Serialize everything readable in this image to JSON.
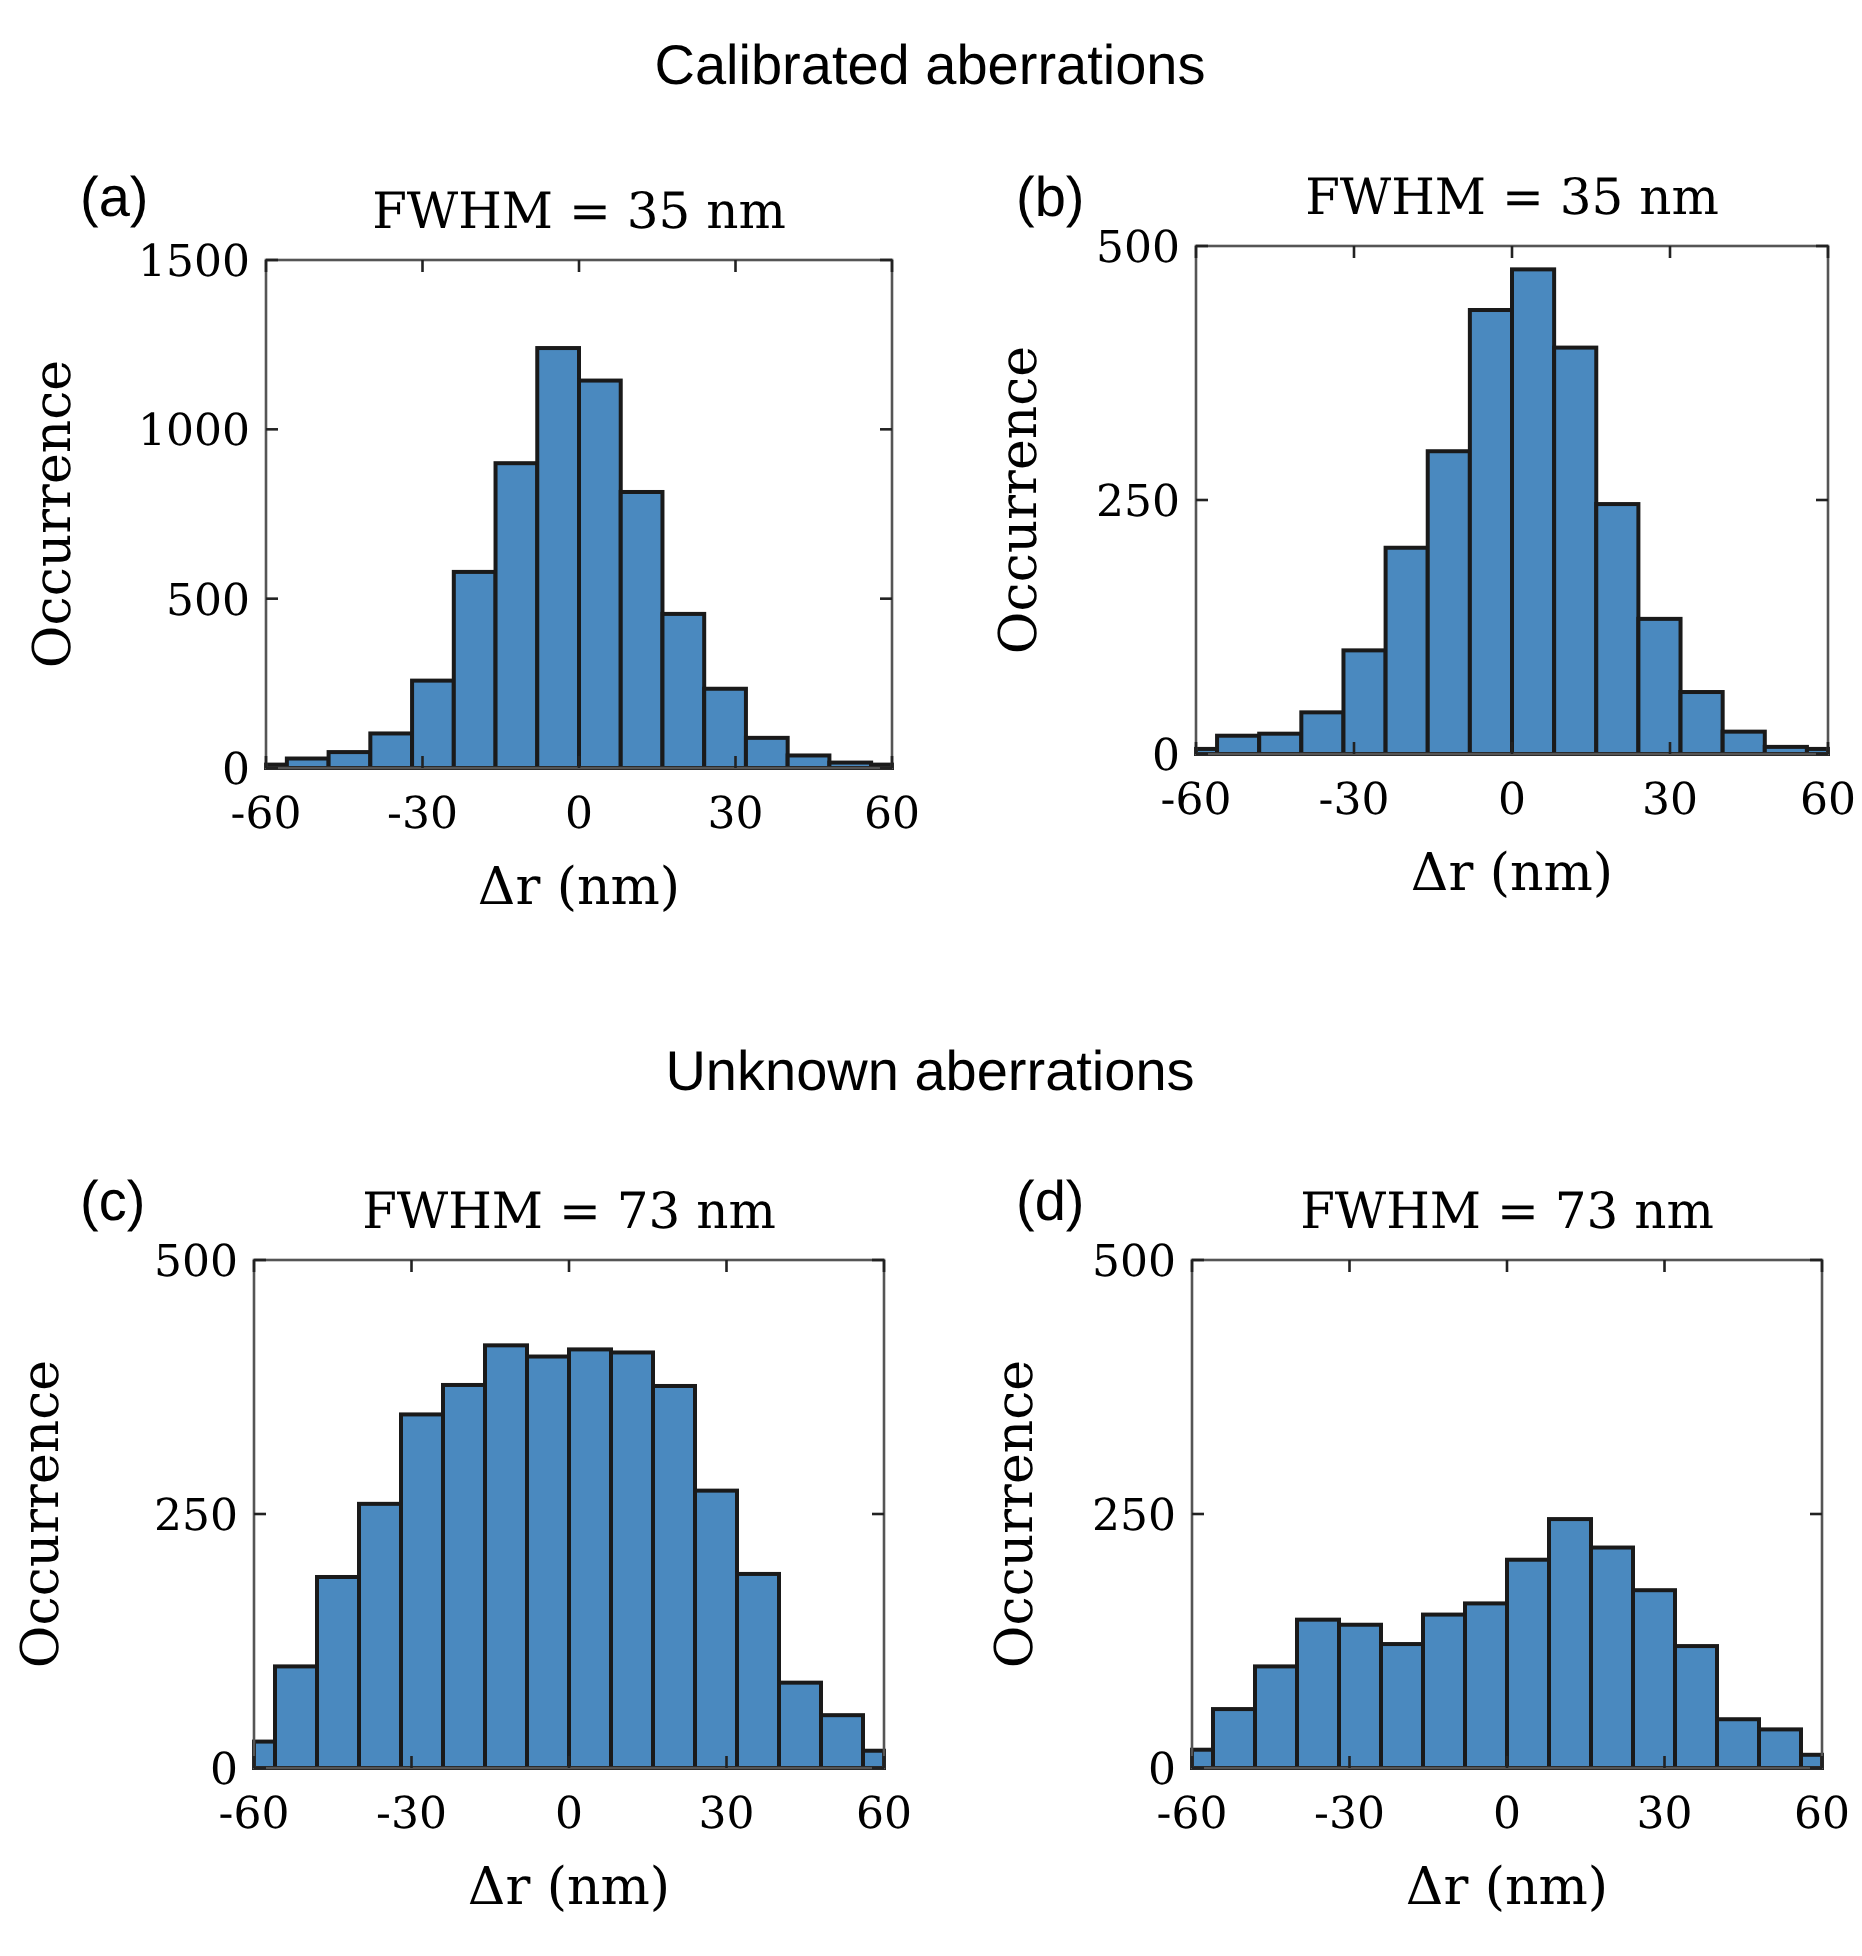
{
  "chart_data": [
    {
      "type": "histogram",
      "title": "FWHM = 35 nm",
      "xlabel": "Δr (nm)",
      "ylabel": "Occurrence",
      "annotations": [
        "Calibrated aberrations",
        "(a)"
      ],
      "color": "#4a89bf",
      "bins": [
        -60,
        -56,
        -48,
        -40,
        -32,
        -24,
        -16,
        -8,
        0,
        8,
        16,
        24,
        32,
        40,
        48,
        56,
        60
      ],
      "values": [
        10,
        28,
        47,
        102,
        258,
        579,
        900,
        1240,
        1144,
        815,
        455,
        234,
        89,
        37,
        16,
        10
      ],
      "xlim": [
        -60,
        60
      ],
      "xticks": [
        -60,
        -30,
        0,
        30,
        60
      ],
      "ylim": [
        0,
        1500
      ],
      "yticks": [
        0,
        500,
        1000,
        1500
      ]
    },
    {
      "type": "histogram",
      "title": "FWHM = 35 nm",
      "xlabel": "Δr (nm)",
      "ylabel": "Occurrence",
      "annotations": [
        "(b)"
      ],
      "color": "#4a89bf",
      "bins": [
        -60,
        -56,
        -48,
        -40,
        -32,
        -24,
        -16,
        -8,
        0,
        8,
        16,
        24,
        32,
        40,
        48,
        56,
        60
      ],
      "values": [
        5,
        18,
        20,
        41,
        102,
        203,
        298,
        437,
        477,
        400,
        246,
        133,
        61,
        22,
        7,
        5
      ],
      "xlim": [
        -60,
        60
      ],
      "xticks": [
        -60,
        -30,
        0,
        30,
        60
      ],
      "ylim": [
        0,
        500
      ],
      "yticks": [
        0,
        250,
        500
      ]
    },
    {
      "type": "histogram",
      "title": "FWHM = 73 nm",
      "xlabel": "Δr (nm)",
      "ylabel": "Occurrence",
      "annotations": [
        "Unknown aberrations",
        "(c)"
      ],
      "color": "#4a89bf",
      "bins": [
        -60,
        -56,
        -48,
        -40,
        -32,
        -24,
        -16,
        -8,
        0,
        8,
        16,
        24,
        32,
        40,
        48,
        56,
        60
      ],
      "values": [
        26,
        100,
        188,
        260,
        348,
        377,
        416,
        405,
        412,
        409,
        376,
        273,
        191,
        84,
        52,
        17
      ],
      "xlim": [
        -60,
        60
      ],
      "xticks": [
        -60,
        -30,
        0,
        30,
        60
      ],
      "ylim": [
        0,
        500
      ],
      "yticks": [
        0,
        250,
        500
      ]
    },
    {
      "type": "histogram",
      "title": "FWHM = 73 nm",
      "xlabel": "Δr (nm)",
      "ylabel": "Occurrence",
      "annotations": [
        "(d)"
      ],
      "color": "#4a89bf",
      "bins": [
        -60,
        -56,
        -48,
        -40,
        -32,
        -24,
        -16,
        -8,
        0,
        8,
        16,
        24,
        32,
        40,
        48,
        56,
        60
      ],
      "values": [
        18,
        58,
        100,
        146,
        141,
        122,
        151,
        162,
        205,
        245,
        217,
        175,
        120,
        48,
        38,
        13
      ],
      "xlim": [
        -60,
        60
      ],
      "xticks": [
        -60,
        -30,
        0,
        30,
        60
      ],
      "ylim": [
        0,
        500
      ],
      "yticks": [
        0,
        250,
        500
      ]
    }
  ]
}
